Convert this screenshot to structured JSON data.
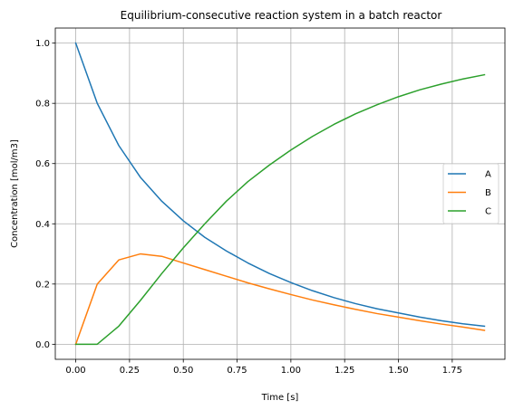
{
  "chart_data": {
    "type": "line",
    "title": "Equilibrium-consecutive reaction system in a batch reactor",
    "xlabel": "Time [s]",
    "ylabel": "Concentration [mol/m3]",
    "xlim": [
      -0.095,
      1.995
    ],
    "ylim": [
      -0.05,
      1.05
    ],
    "xticks": [
      0.0,
      0.25,
      0.5,
      0.75,
      1.0,
      1.25,
      1.5,
      1.75
    ],
    "xtick_labels": [
      "0.00",
      "0.25",
      "0.50",
      "0.75",
      "1.00",
      "1.25",
      "1.50",
      "1.75"
    ],
    "yticks": [
      0.0,
      0.2,
      0.4,
      0.6,
      0.8,
      1.0
    ],
    "ytick_labels": [
      "0.0",
      "0.2",
      "0.4",
      "0.6",
      "0.8",
      "1.0"
    ],
    "grid": true,
    "legend_position": "center-right",
    "x": [
      0.0,
      0.1,
      0.2,
      0.3,
      0.4,
      0.5,
      0.6,
      0.7,
      0.8,
      0.9,
      1.0,
      1.1,
      1.2,
      1.3,
      1.4,
      1.5,
      1.6,
      1.7,
      1.8,
      1.9
    ],
    "series": [
      {
        "name": "A",
        "color": "#1f77b4",
        "values": [
          1.0,
          0.8,
          0.66,
          0.555,
          0.475,
          0.41,
          0.355,
          0.31,
          0.27,
          0.235,
          0.205,
          0.178,
          0.155,
          0.135,
          0.118,
          0.104,
          0.09,
          0.078,
          0.068,
          0.06
        ]
      },
      {
        "name": "B",
        "color": "#ff7f0e",
        "values": [
          0.0,
          0.2,
          0.28,
          0.3,
          0.292,
          0.27,
          0.248,
          0.226,
          0.204,
          0.184,
          0.165,
          0.147,
          0.131,
          0.116,
          0.102,
          0.09,
          0.078,
          0.067,
          0.057,
          0.046
        ]
      },
      {
        "name": "C",
        "color": "#2ca02c",
        "values": [
          0.0,
          0.0,
          0.06,
          0.145,
          0.235,
          0.32,
          0.4,
          0.475,
          0.54,
          0.595,
          0.645,
          0.69,
          0.73,
          0.765,
          0.795,
          0.822,
          0.845,
          0.864,
          0.881,
          0.895
        ]
      }
    ]
  }
}
